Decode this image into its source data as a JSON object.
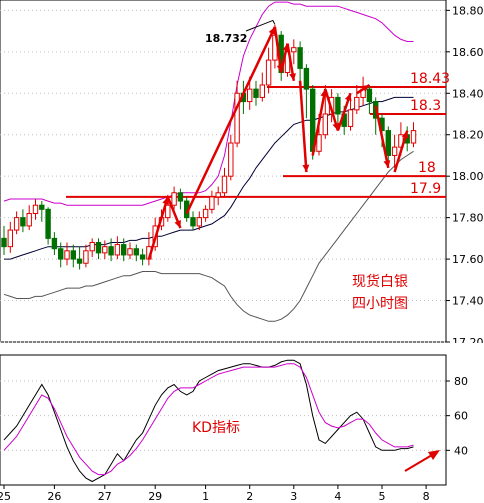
{
  "chart_data": [
    {
      "type": "candlestick",
      "title": "",
      "annotation": "现货白银\n四小时图",
      "ylim": [
        17.2,
        18.85
      ],
      "y_ticks": [
        "18.80",
        "18.60",
        "18.40",
        "18.20",
        "18.00",
        "17.80",
        "17.60",
        "17.40",
        "17.20"
      ],
      "y_tick_values": [
        18.8,
        18.6,
        18.4,
        18.2,
        18.0,
        17.8,
        17.6,
        17.4,
        17.2
      ],
      "x_tick_labels": [
        "25",
        "26",
        "27",
        "29",
        "1",
        "2",
        "3",
        "4",
        "5",
        "8"
      ],
      "x_tick_index": [
        0,
        8,
        16,
        24,
        32,
        39,
        46,
        53,
        60,
        67
      ],
      "high_label": "18.732",
      "high_value": 18.732,
      "levels": [
        {
          "label": "18.43",
          "value": 18.43
        },
        {
          "label": "18.3",
          "value": 18.3
        },
        {
          "label": "18",
          "value": 18.0
        },
        {
          "label": "17.9",
          "value": 17.9
        }
      ],
      "colors": {
        "up": "#e00000",
        "down": "#007000",
        "upper_band": "#cc00cc",
        "mid_band": "#000033",
        "lower_band": "#555555",
        "levels": "#e00000"
      },
      "candles": [
        [
          17.7,
          17.66,
          17.76,
          17.62
        ],
        [
          17.66,
          17.74,
          17.78,
          17.63
        ],
        [
          17.74,
          17.8,
          17.83,
          17.72
        ],
        [
          17.8,
          17.76,
          17.84,
          17.73
        ],
        [
          17.76,
          17.82,
          17.86,
          17.74
        ],
        [
          17.82,
          17.86,
          17.89,
          17.79
        ],
        [
          17.86,
          17.84,
          17.88,
          17.78
        ],
        [
          17.84,
          17.7,
          17.85,
          17.67
        ],
        [
          17.7,
          17.65,
          17.73,
          17.62
        ],
        [
          17.65,
          17.6,
          17.68,
          17.56
        ],
        [
          17.6,
          17.64,
          17.68,
          17.57
        ],
        [
          17.64,
          17.6,
          17.67,
          17.56
        ],
        [
          17.6,
          17.58,
          17.66,
          17.55
        ],
        [
          17.58,
          17.64,
          17.67,
          17.56
        ],
        [
          17.64,
          17.68,
          17.7,
          17.61
        ],
        [
          17.68,
          17.63,
          17.7,
          17.6
        ],
        [
          17.63,
          17.66,
          17.69,
          17.6
        ],
        [
          17.66,
          17.62,
          17.7,
          17.59
        ],
        [
          17.62,
          17.67,
          17.71,
          17.6
        ],
        [
          17.67,
          17.62,
          17.7,
          17.59
        ],
        [
          17.62,
          17.65,
          17.68,
          17.6
        ],
        [
          17.65,
          17.62,
          17.67,
          17.59
        ],
        [
          17.62,
          17.6,
          17.65,
          17.57
        ],
        [
          17.6,
          17.66,
          17.73,
          17.57
        ],
        [
          17.66,
          17.76,
          17.8,
          17.64
        ],
        [
          17.76,
          17.8,
          17.84,
          17.74
        ],
        [
          17.8,
          17.86,
          17.91,
          17.78
        ],
        [
          17.86,
          17.92,
          17.95,
          17.84
        ],
        [
          17.92,
          17.88,
          17.94,
          17.84
        ],
        [
          17.88,
          17.8,
          17.9,
          17.78
        ],
        [
          17.8,
          17.76,
          17.83,
          17.74
        ],
        [
          17.76,
          17.8,
          17.83,
          17.74
        ],
        [
          17.8,
          17.84,
          17.86,
          17.78
        ],
        [
          17.84,
          17.9,
          17.93,
          17.82
        ],
        [
          17.9,
          17.92,
          17.95,
          17.86
        ],
        [
          17.92,
          18.0,
          18.04,
          17.9
        ],
        [
          18.0,
          18.16,
          18.2,
          17.98
        ],
        [
          18.16,
          18.4,
          18.46,
          18.14
        ],
        [
          18.4,
          18.36,
          18.46,
          18.3
        ],
        [
          18.36,
          18.42,
          18.48,
          18.32
        ],
        [
          18.42,
          18.38,
          18.46,
          18.34
        ],
        [
          18.38,
          18.44,
          18.5,
          18.36
        ],
        [
          18.44,
          18.56,
          18.62,
          18.4
        ],
        [
          18.56,
          18.68,
          18.73,
          18.52
        ],
        [
          18.68,
          18.5,
          18.7,
          18.46
        ],
        [
          18.5,
          18.6,
          18.64,
          18.48
        ],
        [
          18.6,
          18.62,
          18.66,
          18.54
        ],
        [
          18.62,
          18.52,
          18.65,
          18.44
        ],
        [
          18.52,
          18.42,
          18.54,
          18.28
        ],
        [
          18.42,
          18.12,
          18.44,
          18.08
        ],
        [
          18.12,
          18.2,
          18.3,
          18.1
        ],
        [
          18.2,
          18.3,
          18.44,
          18.18
        ],
        [
          18.3,
          18.38,
          18.42,
          18.26
        ],
        [
          18.38,
          18.3,
          18.4,
          18.24
        ],
        [
          18.3,
          18.24,
          18.34,
          18.2
        ],
        [
          18.24,
          18.32,
          18.4,
          18.22
        ],
        [
          18.32,
          18.38,
          18.44,
          18.3
        ],
        [
          18.38,
          18.42,
          18.48,
          18.34
        ],
        [
          18.42,
          18.36,
          18.44,
          18.3
        ],
        [
          18.36,
          18.28,
          18.38,
          18.2
        ],
        [
          18.28,
          18.22,
          18.3,
          18.14
        ],
        [
          18.22,
          18.1,
          18.24,
          18.06
        ],
        [
          18.1,
          18.14,
          18.2,
          18.04
        ],
        [
          18.14,
          18.2,
          18.26,
          18.1
        ],
        [
          18.2,
          18.16,
          18.24,
          18.12
        ],
        [
          18.16,
          18.22,
          18.26,
          18.14
        ]
      ],
      "upper_band": [
        17.88,
        17.89,
        17.89,
        17.89,
        17.89,
        17.89,
        17.89,
        17.88,
        17.87,
        17.87,
        17.86,
        17.86,
        17.86,
        17.86,
        17.86,
        17.86,
        17.86,
        17.86,
        17.86,
        17.86,
        17.86,
        17.86,
        17.86,
        17.87,
        17.88,
        17.89,
        17.9,
        17.91,
        17.92,
        17.92,
        17.92,
        17.92,
        17.93,
        17.96,
        18.0,
        18.1,
        18.26,
        18.44,
        18.58,
        18.66,
        18.72,
        18.78,
        18.82,
        18.84,
        18.84,
        18.84,
        18.83,
        18.83,
        18.82,
        18.82,
        18.82,
        18.82,
        18.82,
        18.82,
        18.81,
        18.8,
        18.79,
        18.78,
        18.77,
        18.76,
        18.74,
        18.71,
        18.68,
        18.66,
        18.65,
        18.65
      ],
      "mid_band": [
        17.6,
        17.6,
        17.61,
        17.62,
        17.63,
        17.64,
        17.65,
        17.66,
        17.66,
        17.66,
        17.66,
        17.66,
        17.66,
        17.66,
        17.67,
        17.67,
        17.67,
        17.68,
        17.68,
        17.68,
        17.69,
        17.69,
        17.7,
        17.7,
        17.71,
        17.71,
        17.72,
        17.73,
        17.74,
        17.74,
        17.74,
        17.75,
        17.76,
        17.77,
        17.79,
        17.81,
        17.85,
        17.9,
        17.95,
        17.99,
        18.04,
        18.08,
        18.12,
        18.16,
        18.19,
        18.22,
        18.25,
        18.26,
        18.27,
        18.27,
        18.28,
        18.29,
        18.3,
        18.31,
        18.31,
        18.32,
        18.33,
        18.34,
        18.35,
        18.36,
        18.36,
        18.37,
        18.38,
        18.38,
        18.38,
        18.38
      ],
      "lower_band": [
        17.43,
        17.42,
        17.41,
        17.41,
        17.41,
        17.42,
        17.42,
        17.43,
        17.44,
        17.45,
        17.46,
        17.46,
        17.46,
        17.47,
        17.47,
        17.48,
        17.49,
        17.5,
        17.51,
        17.52,
        17.52,
        17.53,
        17.54,
        17.54,
        17.54,
        17.53,
        17.53,
        17.53,
        17.53,
        17.53,
        17.53,
        17.53,
        17.52,
        17.51,
        17.49,
        17.47,
        17.42,
        17.38,
        17.35,
        17.33,
        17.32,
        17.31,
        17.3,
        17.3,
        17.31,
        17.33,
        17.36,
        17.4,
        17.46,
        17.52,
        17.58,
        17.62,
        17.66,
        17.7,
        17.74,
        17.78,
        17.82,
        17.86,
        17.9,
        17.94,
        17.98,
        18.02,
        18.05,
        18.08,
        18.1,
        18.12
      ]
    },
    {
      "type": "line",
      "title": "",
      "annotation": "KD指标",
      "ylim": [
        20,
        95
      ],
      "y_ticks": [
        "80",
        "60",
        "40"
      ],
      "y_tick_values": [
        80,
        60,
        40
      ],
      "series": [
        {
          "name": "",
          "color": "#000000",
          "values": [
            46,
            50,
            54,
            60,
            66,
            72,
            78,
            72,
            62,
            52,
            42,
            34,
            28,
            24,
            22,
            24,
            26,
            32,
            38,
            34,
            40,
            46,
            50,
            58,
            66,
            72,
            76,
            78,
            74,
            72,
            74,
            80,
            82,
            84,
            86,
            87,
            88,
            89,
            90,
            90,
            89,
            88,
            88,
            89,
            91,
            92,
            92,
            90,
            78,
            60,
            46,
            44,
            48,
            52,
            56,
            60,
            62,
            58,
            50,
            42,
            40,
            40,
            40,
            41,
            41,
            42
          ]
        },
        {
          "name": "",
          "color": "#cc00cc",
          "values": [
            40,
            44,
            48,
            54,
            60,
            66,
            72,
            70,
            64,
            56,
            48,
            42,
            36,
            32,
            28,
            26,
            26,
            28,
            32,
            34,
            37,
            41,
            46,
            52,
            58,
            64,
            70,
            74,
            76,
            76,
            76,
            78,
            80,
            82,
            84,
            85,
            86,
            87,
            88,
            88,
            88,
            88,
            88,
            88,
            89,
            90,
            90,
            88,
            82,
            72,
            62,
            56,
            54,
            53,
            54,
            56,
            58,
            58,
            55,
            50,
            46,
            44,
            42,
            42,
            42,
            43
          ]
        }
      ]
    }
  ]
}
